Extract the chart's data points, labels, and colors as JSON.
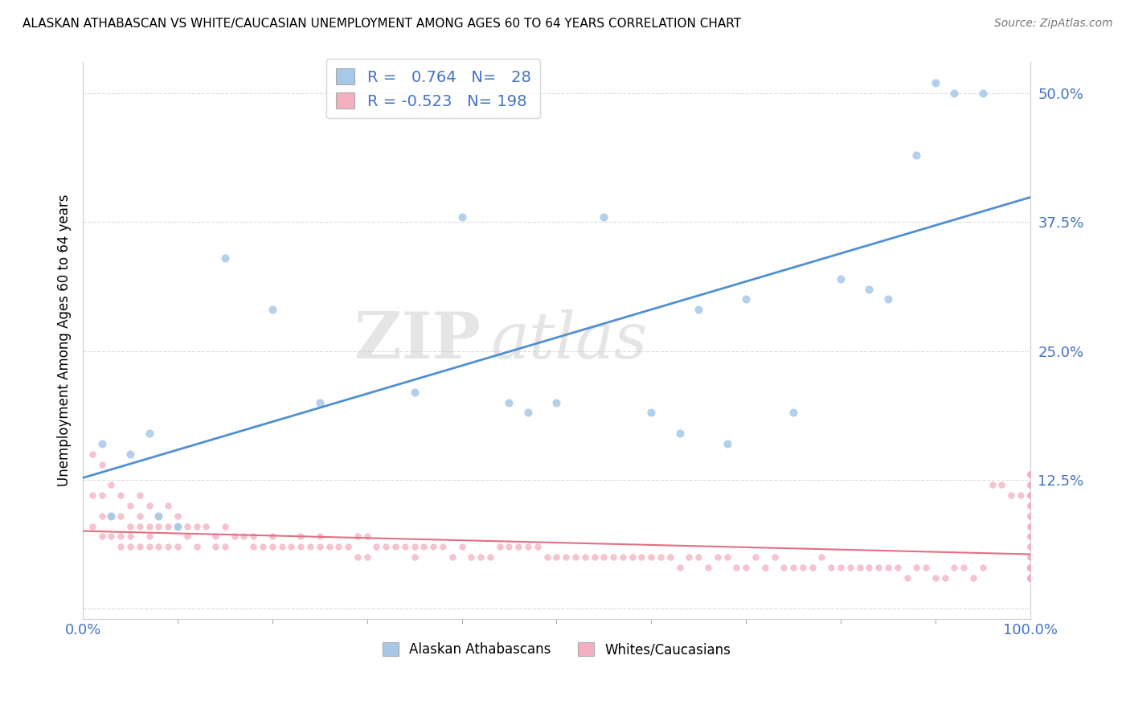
{
  "title": "ALASKAN ATHABASCAN VS WHITE/CAUCASIAN UNEMPLOYMENT AMONG AGES 60 TO 64 YEARS CORRELATION CHART",
  "source": "Source: ZipAtlas.com",
  "ylabel": "Unemployment Among Ages 60 to 64 years",
  "xlim": [
    0,
    100
  ],
  "ylim": [
    -1,
    53
  ],
  "yticks": [
    0,
    12.5,
    25.0,
    37.5,
    50.0
  ],
  "ytick_labels": [
    "",
    "12.5%",
    "25.0%",
    "37.5%",
    "50.0%"
  ],
  "xtick_labels": [
    "0.0%",
    "100.0%"
  ],
  "legend_blue_r": "0.764",
  "legend_blue_n": "28",
  "legend_pink_r": "-0.523",
  "legend_pink_n": "198",
  "blue_color": "#a8c8e8",
  "pink_color": "#f4b0c0",
  "blue_line_color": "#5090d0",
  "pink_line_color": "#e07080",
  "watermark_zip": "ZIP",
  "watermark_atlas": "atlas",
  "blue_scatter_x": [
    2,
    3,
    5,
    7,
    8,
    10,
    15,
    20,
    25,
    35,
    40,
    45,
    47,
    50,
    55,
    60,
    63,
    65,
    68,
    70,
    75,
    80,
    83,
    85,
    88,
    90,
    92,
    95
  ],
  "blue_scatter_y": [
    16,
    9,
    15,
    17,
    9,
    8,
    34,
    29,
    20,
    21,
    38,
    20,
    19,
    20,
    38,
    19,
    17,
    29,
    16,
    30,
    19,
    32,
    31,
    30,
    44,
    51,
    50,
    50
  ],
  "pink_scatter_x": [
    1,
    1,
    1,
    2,
    2,
    2,
    2,
    3,
    3,
    3,
    4,
    4,
    4,
    4,
    5,
    5,
    5,
    5,
    6,
    6,
    6,
    6,
    7,
    7,
    7,
    7,
    8,
    8,
    8,
    9,
    9,
    9,
    10,
    10,
    10,
    11,
    11,
    12,
    12,
    13,
    14,
    14,
    15,
    15,
    16,
    17,
    18,
    18,
    19,
    20,
    20,
    21,
    22,
    23,
    23,
    24,
    25,
    25,
    26,
    27,
    28,
    29,
    29,
    30,
    30,
    31,
    32,
    33,
    34,
    35,
    35,
    36,
    37,
    38,
    39,
    40,
    41,
    42,
    43,
    44,
    45,
    46,
    47,
    48,
    49,
    50,
    51,
    52,
    53,
    54,
    55,
    56,
    57,
    58,
    59,
    60,
    61,
    62,
    63,
    64,
    65,
    66,
    67,
    68,
    69,
    70,
    71,
    72,
    73,
    74,
    75,
    76,
    77,
    78,
    79,
    80,
    81,
    82,
    83,
    84,
    85,
    86,
    87,
    88,
    89,
    90,
    91,
    92,
    93,
    94,
    95,
    96,
    97,
    98,
    99,
    100,
    100,
    100,
    100,
    100,
    100,
    100,
    100,
    100,
    100,
    100,
    100,
    100,
    100,
    100,
    100,
    100,
    100,
    100,
    100,
    100,
    100,
    100,
    100,
    100,
    100,
    100,
    100,
    100,
    100,
    100,
    100,
    100,
    100,
    100,
    100,
    100,
    100,
    100,
    100,
    100,
    100,
    100,
    100,
    100,
    100,
    100,
    100,
    100,
    100,
    100,
    100,
    100,
    100,
    100,
    100,
    100,
    100,
    100,
    100,
    100,
    100,
    100
  ],
  "pink_scatter_y": [
    15,
    11,
    8,
    14,
    11,
    9,
    7,
    12,
    9,
    7,
    11,
    9,
    7,
    6,
    10,
    8,
    7,
    6,
    11,
    9,
    8,
    6,
    10,
    8,
    7,
    6,
    9,
    8,
    6,
    10,
    8,
    6,
    9,
    8,
    6,
    8,
    7,
    8,
    6,
    8,
    7,
    6,
    8,
    6,
    7,
    7,
    7,
    6,
    6,
    7,
    6,
    6,
    6,
    7,
    6,
    6,
    7,
    6,
    6,
    6,
    6,
    7,
    5,
    7,
    5,
    6,
    6,
    6,
    6,
    6,
    5,
    6,
    6,
    6,
    5,
    6,
    5,
    5,
    5,
    6,
    6,
    6,
    6,
    6,
    5,
    5,
    5,
    5,
    5,
    5,
    5,
    5,
    5,
    5,
    5,
    5,
    5,
    5,
    4,
    5,
    5,
    4,
    5,
    5,
    4,
    4,
    5,
    4,
    5,
    4,
    4,
    4,
    4,
    5,
    4,
    4,
    4,
    4,
    4,
    4,
    4,
    4,
    3,
    4,
    4,
    3,
    3,
    4,
    4,
    3,
    4,
    12,
    12,
    11,
    11,
    13,
    13,
    12,
    12,
    11,
    11,
    13,
    13,
    12,
    12,
    11,
    11,
    10,
    10,
    9,
    9,
    8,
    8,
    7,
    7,
    6,
    6,
    5,
    5,
    4,
    4,
    3,
    3,
    4,
    4,
    3,
    3,
    4,
    4,
    3,
    3,
    4,
    4,
    3,
    3,
    4,
    4,
    3,
    3,
    4,
    4,
    3,
    3,
    4,
    4,
    3,
    3,
    4,
    4,
    3,
    3,
    4,
    4,
    3,
    3,
    4,
    4,
    3
  ]
}
